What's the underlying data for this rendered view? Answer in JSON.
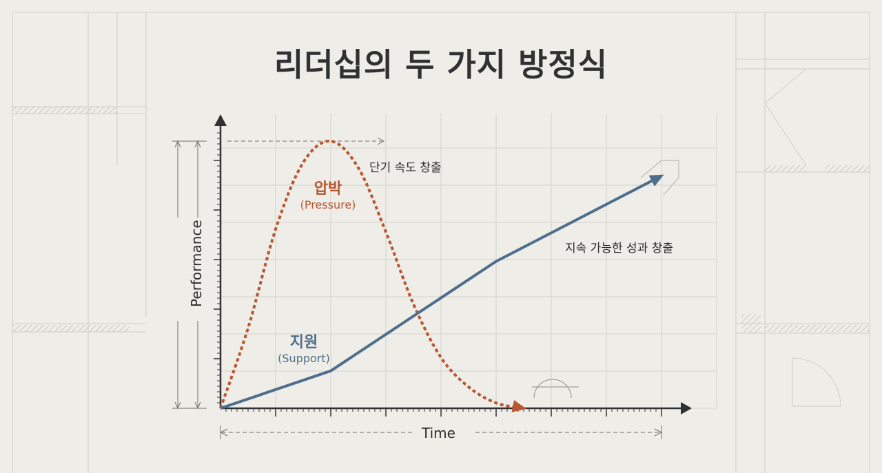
{
  "title": "리더십의 두 가지 방정식",
  "colors": {
    "background": "#eeede8",
    "pressure": "#b8562f",
    "support": "#4f6e8c",
    "axis": "#2f3133",
    "grid": "#d2d1cb"
  },
  "chart_data": {
    "type": "line",
    "title": "리더십의 두 가지 방정식",
    "xlabel": "Time",
    "ylabel": "Performance",
    "grid": true,
    "xlim": [
      0,
      8
    ],
    "ylim": [
      0,
      10
    ],
    "series": [
      {
        "name": "압박",
        "subname": "(Pressure)",
        "style": "dotted",
        "color": "#b8562f",
        "x": [
          0,
          0.5,
          1.0,
          1.5,
          2.0,
          2.5,
          3.0,
          3.5,
          4.0,
          4.5,
          5.0,
          5.5
        ],
        "y": [
          0,
          3.0,
          6.7,
          9.2,
          10.0,
          9.0,
          6.6,
          3.9,
          1.9,
          0.8,
          0.2,
          0
        ],
        "annotation": "단기 속도 창출"
      },
      {
        "name": "지원",
        "subname": "(Support)",
        "style": "solid",
        "color": "#4f6e8c",
        "x": [
          0,
          2.0,
          5.0,
          8.0
        ],
        "y": [
          0,
          1.4,
          5.5,
          8.7
        ],
        "annotation": "지속 가능한 성과 창출"
      }
    ]
  }
}
